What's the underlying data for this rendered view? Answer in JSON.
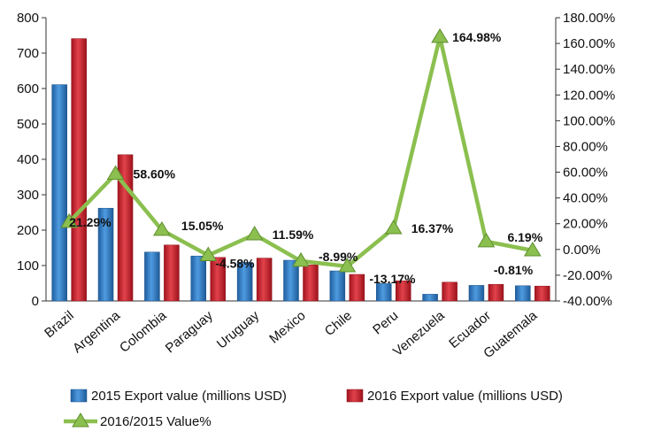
{
  "chart_data": {
    "type": "bar",
    "categories": [
      "Brazil",
      "Argentina",
      "Colombia",
      "Paraguay",
      "Uruguay",
      "Mexico",
      "Chile",
      "Peru",
      "Venezuela",
      "Ecuador",
      "Guatemala"
    ],
    "series": [
      {
        "name": "2015  Export value (millions USD)",
        "type": "bar",
        "axis": "left",
        "color": "#2e75b6",
        "values": [
          611,
          262,
          138,
          127,
          109,
          115,
          85,
          49,
          19,
          44,
          43
        ]
      },
      {
        "name": "2016  Export value (millions USD)",
        "type": "bar",
        "axis": "left",
        "color": "#c0202b",
        "values": [
          741,
          413,
          158,
          123,
          121,
          102,
          75,
          57,
          53,
          47,
          42
        ]
      },
      {
        "name": "2016/2015 Value%",
        "type": "line",
        "axis": "right",
        "color": "#8bbf4f",
        "values": [
          21.29,
          58.6,
          15.05,
          -4.58,
          11.59,
          -8.99,
          -13.17,
          16.37,
          164.98,
          6.19,
          -0.81
        ],
        "labels": [
          "21.29%",
          "58.60%",
          "15.05%",
          "-4.58%",
          "11.59%",
          "-8.99%",
          "-13.17%",
          "16.37%",
          "164.98%",
          "6.19%",
          "-0.81%"
        ]
      }
    ],
    "y_left": {
      "ylim": [
        0,
        800
      ],
      "ticks": [
        "0",
        "100",
        "200",
        "300",
        "400",
        "500",
        "600",
        "700",
        "800"
      ]
    },
    "y_right": {
      "ylim": [
        -40,
        180
      ],
      "ticks": [
        "-40.00%",
        "-20.00%",
        "0.00%",
        "20.00%",
        "40.00%",
        "60.00%",
        "80.00%",
        "100.00%",
        "120.00%",
        "140.00%",
        "160.00%",
        "180.00%"
      ]
    },
    "grid": false,
    "legend_position": "bottom"
  }
}
